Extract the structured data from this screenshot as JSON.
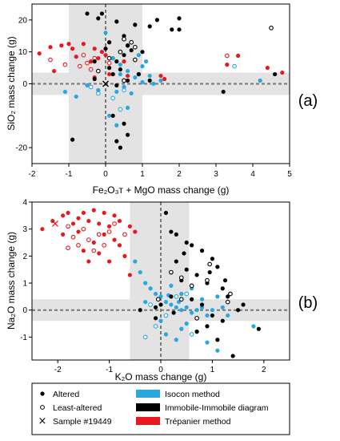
{
  "colors": {
    "isocon": "#29a8df",
    "immobile": "#000000",
    "trepanier": "#e8191e",
    "shade": "#e3e3e3"
  },
  "legend": {
    "altered": "Altered",
    "least_altered": "Least-altered",
    "sample": "Sample #19449",
    "isocon": "Isocon method",
    "immobile": "Immobile-Immobile diagram",
    "trepanier": "Trépanier method"
  },
  "chart_data": [
    {
      "type": "scatter",
      "panel_label": "(a)",
      "xlabel": "Fe₂O₃ᴛ + MgO mass change (g)",
      "ylabel": "SiO₂ mass change (g)",
      "xlim": [
        -2,
        5
      ],
      "ylim": [
        -25,
        25
      ],
      "xticks": [
        "-2",
        "-1",
        "0",
        "1",
        "2",
        "3",
        "4",
        "5"
      ],
      "xtick_values": [
        -2,
        -1,
        0,
        1,
        2,
        3,
        4,
        5
      ],
      "yticks": [
        "-20",
        "0",
        "10",
        "20"
      ],
      "ytick_values": [
        -20,
        0,
        10,
        20
      ],
      "shade_x": [
        -1,
        1
      ],
      "shade_y": [
        -3.5,
        3.5
      ],
      "sample": [
        0,
        0
      ],
      "series": [
        {
          "method": "trepanier",
          "style": "filled",
          "points": [
            [
              -1.8,
              9.5
            ],
            [
              -1.5,
              11.5
            ],
            [
              -1.2,
              12
            ],
            [
              -1,
              12.5
            ],
            [
              -0.9,
              11
            ],
            [
              -0.6,
              12.5
            ],
            [
              -0.3,
              11
            ],
            [
              -0.2,
              8
            ],
            [
              -0.1,
              10
            ],
            [
              0,
              9
            ],
            [
              0.2,
              8
            ],
            [
              -0.4,
              7
            ],
            [
              -0.8,
              8.5
            ],
            [
              -1.4,
              4
            ],
            [
              -0.3,
              2
            ],
            [
              0.1,
              3
            ],
            [
              0.5,
              7
            ],
            [
              1.5,
              2.5
            ],
            [
              1.6,
              1.5
            ],
            [
              3.3,
              6
            ],
            [
              3.6,
              8.8
            ],
            [
              4.4,
              5
            ],
            [
              4.8,
              3.5
            ],
            [
              0.6,
              2.5
            ],
            [
              0.7,
              13
            ]
          ]
        },
        {
          "method": "trepanier",
          "style": "open",
          "points": [
            [
              -1.5,
              7.5
            ],
            [
              -1.1,
              6
            ],
            [
              -0.6,
              9
            ],
            [
              -0.5,
              6.5
            ],
            [
              -0.3,
              8
            ],
            [
              -0.7,
              5.5
            ],
            [
              -0.4,
              4.5
            ],
            [
              0.1,
              6.5
            ],
            [
              3.3,
              8.8
            ]
          ]
        },
        {
          "method": "isocon",
          "style": "filled",
          "points": [
            [
              0,
              16
            ],
            [
              0.2,
              8
            ],
            [
              0.4,
              6
            ],
            [
              0.6,
              4
            ],
            [
              0.9,
              9
            ],
            [
              1,
              5.5
            ],
            [
              1.1,
              7
            ],
            [
              0.8,
              2
            ],
            [
              1.2,
              2.5
            ],
            [
              0.3,
              -2.5
            ],
            [
              -0.5,
              -0.5
            ],
            [
              -1.1,
              -2.5
            ],
            [
              1.5,
              1
            ],
            [
              0.7,
              -3
            ],
            [
              -0.2,
              -2
            ],
            [
              4.2,
              1
            ],
            [
              0.5,
              -1
            ],
            [
              1,
              0.5
            ],
            [
              0.6,
              -7.5
            ],
            [
              0.3,
              -13
            ],
            [
              0.1,
              -10
            ],
            [
              -0.8,
              -4
            ],
            [
              0.4,
              3
            ],
            [
              1.3,
              0
            ]
          ]
        },
        {
          "method": "isocon",
          "style": "open",
          "points": [
            [
              0.6,
              12
            ],
            [
              0.9,
              3
            ],
            [
              0.5,
              -2
            ],
            [
              0.2,
              -4.5
            ],
            [
              -0.2,
              -3
            ],
            [
              0.4,
              -8
            ],
            [
              3.5,
              5.5
            ],
            [
              -0.4,
              -1
            ]
          ]
        },
        {
          "method": "immobile",
          "style": "filled",
          "points": [
            [
              -0.5,
              22
            ],
            [
              -0.2,
              20.5
            ],
            [
              -0.1,
              22
            ],
            [
              0.3,
              19.5
            ],
            [
              0.5,
              15
            ],
            [
              0.8,
              18.5
            ],
            [
              1.2,
              18
            ],
            [
              1.4,
              20
            ],
            [
              1.8,
              17
            ],
            [
              2,
              20.5
            ],
            [
              2,
              17
            ],
            [
              0.1,
              13
            ],
            [
              0.6,
              12
            ],
            [
              0.7,
              10.5
            ],
            [
              0.5,
              9
            ],
            [
              0.3,
              7
            ],
            [
              0.1,
              5
            ],
            [
              0.4,
              4.5
            ],
            [
              -0.3,
              7
            ],
            [
              0,
              11
            ],
            [
              0.2,
              3
            ],
            [
              0.9,
              3
            ],
            [
              1.2,
              1
            ],
            [
              4.6,
              3
            ],
            [
              3.2,
              -2.5
            ],
            [
              0.3,
              -0.5
            ],
            [
              -0.9,
              -17.5
            ],
            [
              0.2,
              -10
            ],
            [
              0.5,
              -12.5
            ],
            [
              0.3,
              -18
            ],
            [
              0.4,
              -20
            ],
            [
              0.6,
              -16
            ],
            [
              1,
              10
            ],
            [
              -0.3,
              1.5
            ],
            [
              0.6,
              1
            ]
          ]
        },
        {
          "method": "immobile",
          "style": "open",
          "points": [
            [
              0.5,
              14
            ],
            [
              0.8,
              11.5
            ],
            [
              0.7,
              13
            ],
            [
              0.4,
              10
            ],
            [
              0.1,
              8
            ],
            [
              -0.2,
              4
            ],
            [
              0.5,
              1
            ],
            [
              4.5,
              17.5
            ],
            [
              0.8,
              7.5
            ]
          ]
        }
      ]
    },
    {
      "type": "scatter",
      "panel_label": "(b)",
      "xlabel": "K₂O mass change (g)",
      "ylabel": "Na₂O mass change (g)",
      "xlim": [
        -2.5,
        2.5
      ],
      "ylim": [
        -1.85,
        4
      ],
      "xticks": [
        "-2",
        "-1",
        "0",
        "1",
        "2"
      ],
      "xtick_values": [
        -2,
        -1,
        0,
        1,
        2
      ],
      "yticks": [
        "-1",
        "0",
        "1",
        "2",
        "3",
        "4"
      ],
      "ytick_values": [
        -1,
        0,
        1,
        2,
        3,
        4
      ],
      "shade_x": [
        -0.6,
        0.55
      ],
      "shade_y": [
        -0.4,
        0.4
      ],
      "sample": [
        -2.05,
        3.2
      ],
      "series": [
        {
          "method": "trepanier",
          "style": "filled",
          "points": [
            [
              -2.3,
              3
            ],
            [
              -2.1,
              3.3
            ],
            [
              -1.9,
              3.5
            ],
            [
              -1.8,
              3.6
            ],
            [
              -1.6,
              3.4
            ],
            [
              -1.5,
              3.6
            ],
            [
              -1.3,
              3.7
            ],
            [
              -1.1,
              3.6
            ],
            [
              -0.9,
              3.5
            ],
            [
              -0.8,
              3.3
            ],
            [
              -1.4,
              3.3
            ],
            [
              -1.2,
              3.2
            ],
            [
              -1,
              3.1
            ],
            [
              -1.7,
              3.2
            ],
            [
              -0.6,
              3.1
            ],
            [
              -1.9,
              2.8
            ],
            [
              -1.6,
              2.9
            ],
            [
              -1.3,
              2.5
            ],
            [
              -1.1,
              2.8
            ],
            [
              -0.9,
              2.6
            ],
            [
              -1.5,
              2.2
            ],
            [
              -1.2,
              2.1
            ],
            [
              -0.8,
              2.4
            ],
            [
              -0.7,
              2
            ],
            [
              -1,
              1.8
            ],
            [
              -0.5,
              2.9
            ],
            [
              -1.4,
              1.8
            ],
            [
              -0.6,
              1.3
            ]
          ]
        },
        {
          "method": "trepanier",
          "style": "open",
          "points": [
            [
              -1.8,
              3.1
            ],
            [
              -1.5,
              3
            ],
            [
              -1.7,
              2.7
            ],
            [
              -1.4,
              2.6
            ],
            [
              -1.2,
              2.8
            ],
            [
              -1,
              2.9
            ],
            [
              -1.6,
              2.4
            ],
            [
              -1.3,
              2.2
            ],
            [
              -0.9,
              3.2
            ],
            [
              -0.7,
              2.8
            ],
            [
              -1.8,
              2.3
            ],
            [
              -1.1,
              2.4
            ]
          ]
        },
        {
          "method": "isocon",
          "style": "filled",
          "points": [
            [
              -0.4,
              1.4
            ],
            [
              -0.3,
              1
            ],
            [
              -0.2,
              0.8
            ],
            [
              -0.1,
              0.6
            ],
            [
              0,
              0.5
            ],
            [
              0.1,
              0.3
            ],
            [
              0.2,
              0.2
            ],
            [
              0.3,
              0.1
            ],
            [
              0.4,
              0
            ],
            [
              0.5,
              0.1
            ],
            [
              0.6,
              -0.1
            ],
            [
              0.7,
              0
            ],
            [
              0.8,
              0.1
            ],
            [
              0.9,
              -0.2
            ],
            [
              1,
              0
            ],
            [
              1.2,
              0.1
            ],
            [
              0.2,
              0.9
            ],
            [
              0.4,
              0.6
            ],
            [
              0.5,
              -0.5
            ],
            [
              0.7,
              -0.8
            ],
            [
              0.9,
              -1.2
            ],
            [
              1.1,
              -1.5
            ],
            [
              0.3,
              -1.1
            ],
            [
              1.8,
              -0.6
            ],
            [
              -0.3,
              0.3
            ],
            [
              0,
              -0.4
            ],
            [
              0.6,
              0.8
            ],
            [
              0.8,
              0.4
            ],
            [
              1.1,
              0.5
            ],
            [
              -0.5,
              1.8
            ],
            [
              0.1,
              -0.9
            ],
            [
              0.4,
              -0.7
            ],
            [
              1.3,
              -0.2
            ],
            [
              0.15,
              0.55
            ],
            [
              0.35,
              0.3
            ]
          ]
        },
        {
          "method": "isocon",
          "style": "open",
          "points": [
            [
              -0.2,
              0.2
            ],
            [
              0.1,
              -0.2
            ],
            [
              0.3,
              0.5
            ],
            [
              -0.1,
              -0.6
            ],
            [
              0.6,
              -0.9
            ],
            [
              0.5,
              0.6
            ],
            [
              -0.3,
              -1
            ]
          ]
        },
        {
          "method": "immobile",
          "style": "filled",
          "points": [
            [
              0.1,
              3.6
            ],
            [
              0.2,
              2.9
            ],
            [
              0.3,
              2.8
            ],
            [
              0.5,
              2.5
            ],
            [
              0.6,
              2.4
            ],
            [
              0.8,
              2.2
            ],
            [
              1,
              1.9
            ],
            [
              1.1,
              1.6
            ],
            [
              0.3,
              1.8
            ],
            [
              0.5,
              1.5
            ],
            [
              0.7,
              1.3
            ],
            [
              0.9,
              1
            ],
            [
              1.2,
              0.8
            ],
            [
              1.3,
              0.5
            ],
            [
              0.4,
              1.1
            ],
            [
              0.2,
              0.5
            ],
            [
              0,
              0.2
            ],
            [
              -0.1,
              0.1
            ],
            [
              0.6,
              0.4
            ],
            [
              0.8,
              0.2
            ],
            [
              1,
              -0.2
            ],
            [
              1.2,
              -0.4
            ],
            [
              0.9,
              -0.6
            ],
            [
              0.7,
              -0.8
            ],
            [
              1.1,
              -1.1
            ],
            [
              1.4,
              -1.7
            ],
            [
              1.5,
              0
            ],
            [
              1.6,
              0.2
            ],
            [
              -0.4,
              0
            ],
            [
              -0.1,
              -0.3
            ],
            [
              1.9,
              -0.7
            ],
            [
              0.45,
              2.1
            ],
            [
              0.95,
              1.4
            ],
            [
              0.25,
              -0.1
            ],
            [
              1.25,
              1.1
            ]
          ]
        },
        {
          "method": "immobile",
          "style": "open",
          "points": [
            [
              0.2,
              1.4
            ],
            [
              0.4,
              1.2
            ],
            [
              0.6,
              0.9
            ],
            [
              0.9,
              1.1
            ],
            [
              1.3,
              0.3
            ],
            [
              0.4,
              0.4
            ],
            [
              -0.05,
              0.4
            ],
            [
              0.7,
              -0.3
            ],
            [
              0.95,
              1.7
            ],
            [
              1.35,
              0.6
            ]
          ]
        }
      ]
    }
  ]
}
